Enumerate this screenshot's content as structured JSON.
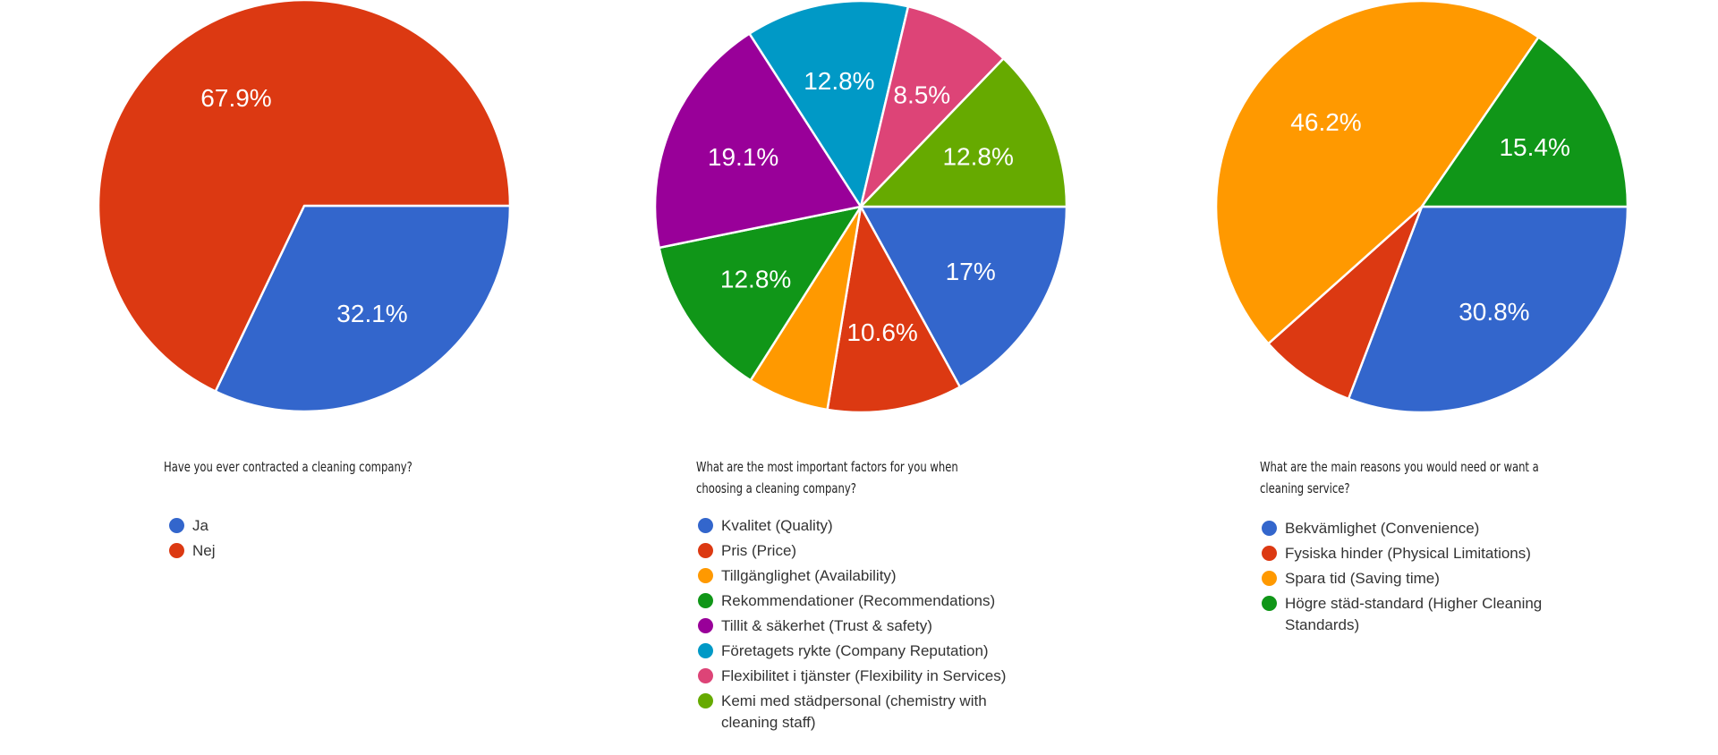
{
  "chart_data": [
    {
      "type": "pie",
      "title": "Have you ever contracted a cleaning company?",
      "slices": [
        {
          "label": "Ja",
          "value": 32.1,
          "value_label": "32.1%",
          "color": "#3366cc"
        },
        {
          "label": "Nej",
          "value": 67.9,
          "value_label": "67.9%",
          "color": "#dc3912"
        }
      ],
      "legend_position": "bottom",
      "start": "3 o'clock",
      "direction": "clockwise"
    },
    {
      "type": "pie",
      "title": "What are the most important factors for you when choosing a cleaning company?",
      "slices": [
        {
          "label": "Kvalitet (Quality)",
          "value": 17.0,
          "value_label": "17%",
          "color": "#3366cc"
        },
        {
          "label": "Pris (Price)",
          "value": 10.6,
          "value_label": "10.6%",
          "color": "#dc3912"
        },
        {
          "label": "Tillgänglighet (Availability)",
          "value": 6.4,
          "value_label": "",
          "color": "#ff9900"
        },
        {
          "label": "Rekommendationer (Recommendations)",
          "value": 12.8,
          "value_label": "12.8%",
          "color": "#109618"
        },
        {
          "label": "Tillit & säkerhet (Trust & safety)",
          "value": 19.1,
          "value_label": "19.1%",
          "color": "#990099"
        },
        {
          "label": "Företagets rykte (Company Reputation)",
          "value": 12.8,
          "value_label": "12.8%",
          "color": "#0099c6"
        },
        {
          "label": "Flexibilitet i tjänster (Flexibility in Services)",
          "value": 8.5,
          "value_label": "8.5%",
          "color": "#dd4477"
        },
        {
          "label": "Kemi med städpersonal (chemistry with cleaning staff)",
          "value": 12.8,
          "value_label": "12.8%",
          "color": "#66aa00"
        }
      ],
      "legend_position": "bottom",
      "start": "3 o'clock",
      "direction": "clockwise"
    },
    {
      "type": "pie",
      "title": "What are the main reasons you would need or want a cleaning service?",
      "slices": [
        {
          "label": "Bekvämlighet (Convenience)",
          "value": 30.8,
          "value_label": "30.8%",
          "color": "#3366cc"
        },
        {
          "label": "Fysiska hinder (Physical Limitations)",
          "value": 7.6,
          "value_label": "",
          "color": "#dc3912"
        },
        {
          "label": "Spara tid (Saving time)",
          "value": 46.2,
          "value_label": "46.2%",
          "color": "#ff9900"
        },
        {
          "label": "Högre städ-standard (Higher Cleaning Standards)",
          "value": 15.4,
          "value_label": "15.4%",
          "color": "#109618"
        }
      ],
      "legend_position": "bottom",
      "start": "3 o'clock",
      "direction": "clockwise"
    }
  ]
}
